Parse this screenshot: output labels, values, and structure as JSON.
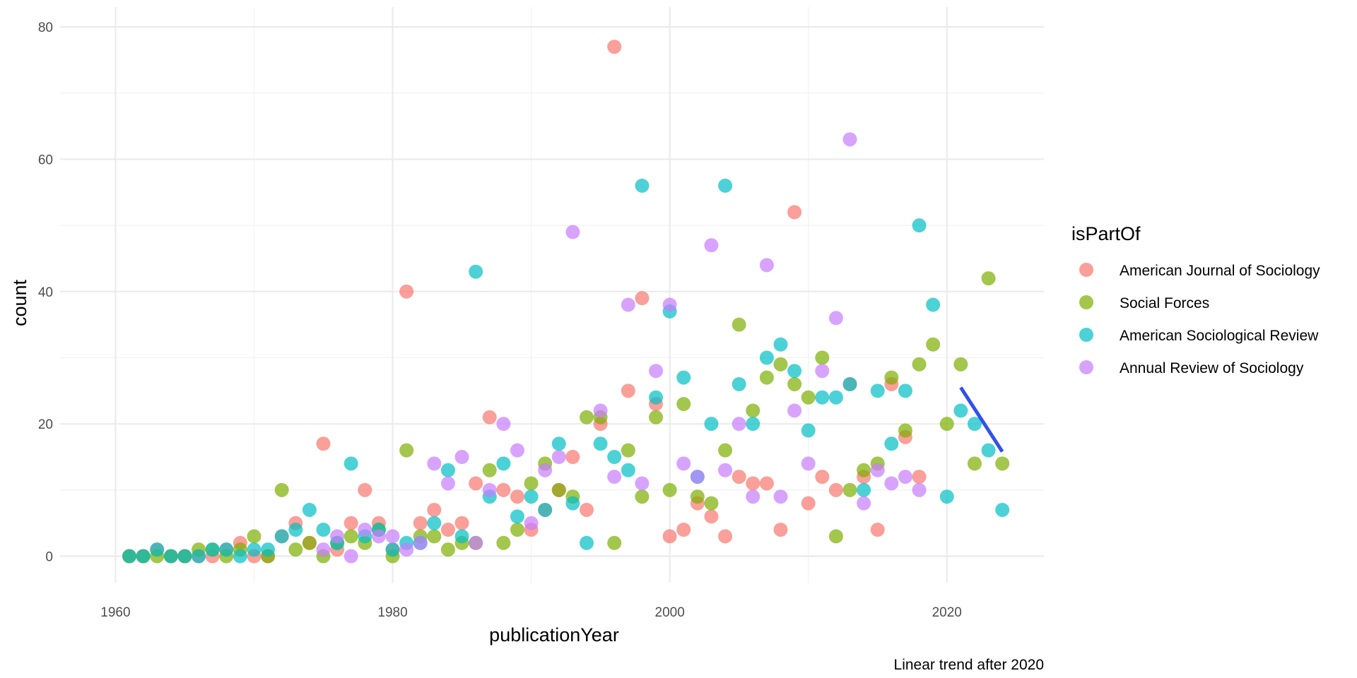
{
  "chart_data": {
    "type": "scatter",
    "xlabel": "publicationYear",
    "ylabel": "count",
    "caption": "Linear trend after 2020",
    "xlim": [
      1956,
      2027
    ],
    "ylim": [
      -4,
      83
    ],
    "x_ticks": [
      1960,
      1980,
      2000,
      2020
    ],
    "y_ticks": [
      0,
      20,
      40,
      60,
      80
    ],
    "x_tick_labels": [
      "1960",
      "1980",
      "2000",
      "2020"
    ],
    "y_tick_labels": [
      "0",
      "20",
      "40",
      "60",
      "80"
    ],
    "grid": true,
    "legend": {
      "title": "isPartOf",
      "position": "right"
    },
    "series": [
      {
        "name": "American Journal of Sociology",
        "color": "#F8766D",
        "points": [
          [
            1961,
            0
          ],
          [
            1962,
            0
          ],
          [
            1963,
            1
          ],
          [
            1964,
            0
          ],
          [
            1965,
            0
          ],
          [
            1966,
            0
          ],
          [
            1967,
            0
          ],
          [
            1968,
            1
          ],
          [
            1969,
            2
          ],
          [
            1970,
            0
          ],
          [
            1971,
            0
          ],
          [
            1972,
            3
          ],
          [
            1973,
            5
          ],
          [
            1974,
            2
          ],
          [
            1975,
            17
          ],
          [
            1976,
            1
          ],
          [
            1977,
            5
          ],
          [
            1978,
            10
          ],
          [
            1979,
            5
          ],
          [
            1980,
            1
          ],
          [
            1981,
            40
          ],
          [
            1982,
            5
          ],
          [
            1983,
            7
          ],
          [
            1984,
            4
          ],
          [
            1985,
            5
          ],
          [
            1986,
            11
          ],
          [
            1987,
            21
          ],
          [
            1988,
            10
          ],
          [
            1989,
            9
          ],
          [
            1990,
            4
          ],
          [
            1991,
            7
          ],
          [
            1992,
            10
          ],
          [
            1993,
            15
          ],
          [
            1994,
            7
          ],
          [
            1995,
            20
          ],
          [
            1996,
            77
          ],
          [
            1997,
            25
          ],
          [
            1998,
            39
          ],
          [
            1999,
            23
          ],
          [
            2000,
            3
          ],
          [
            2001,
            4
          ],
          [
            2002,
            8
          ],
          [
            2003,
            6
          ],
          [
            2004,
            3
          ],
          [
            2005,
            12
          ],
          [
            2006,
            11
          ],
          [
            2007,
            11
          ],
          [
            2008,
            4
          ],
          [
            2009,
            52
          ],
          [
            2010,
            8
          ],
          [
            2011,
            12
          ],
          [
            2012,
            10
          ],
          [
            2013,
            26
          ],
          [
            2014,
            12
          ],
          [
            2015,
            4
          ],
          [
            2016,
            26
          ],
          [
            2017,
            18
          ],
          [
            2018,
            12
          ]
        ]
      },
      {
        "name": "Social Forces",
        "color": "#7CAE00",
        "points": [
          [
            1961,
            0
          ],
          [
            1962,
            0
          ],
          [
            1963,
            0
          ],
          [
            1964,
            0
          ],
          [
            1965,
            0
          ],
          [
            1966,
            1
          ],
          [
            1967,
            1
          ],
          [
            1968,
            0
          ],
          [
            1969,
            1
          ],
          [
            1970,
            3
          ],
          [
            1971,
            0
          ],
          [
            1972,
            10
          ],
          [
            1973,
            1
          ],
          [
            1974,
            2
          ],
          [
            1975,
            0
          ],
          [
            1976,
            2
          ],
          [
            1977,
            3
          ],
          [
            1978,
            2
          ],
          [
            1979,
            4
          ],
          [
            1980,
            0
          ],
          [
            1981,
            16
          ],
          [
            1982,
            3
          ],
          [
            1983,
            3
          ],
          [
            1984,
            1
          ],
          [
            1985,
            2
          ],
          [
            1986,
            2
          ],
          [
            1987,
            13
          ],
          [
            1988,
            2
          ],
          [
            1989,
            4
          ],
          [
            1990,
            11
          ],
          [
            1991,
            14
          ],
          [
            1992,
            10
          ],
          [
            1993,
            9
          ],
          [
            1994,
            21
          ],
          [
            1995,
            21
          ],
          [
            1996,
            2
          ],
          [
            1997,
            16
          ],
          [
            1998,
            9
          ],
          [
            1999,
            21
          ],
          [
            2000,
            10
          ],
          [
            2001,
            23
          ],
          [
            2002,
            9
          ],
          [
            2003,
            8
          ],
          [
            2004,
            16
          ],
          [
            2005,
            35
          ],
          [
            2006,
            22
          ],
          [
            2007,
            27
          ],
          [
            2008,
            29
          ],
          [
            2009,
            26
          ],
          [
            2010,
            24
          ],
          [
            2011,
            30
          ],
          [
            2012,
            3
          ],
          [
            2013,
            10
          ],
          [
            2014,
            13
          ],
          [
            2015,
            14
          ],
          [
            2016,
            27
          ],
          [
            2017,
            19
          ],
          [
            2018,
            29
          ],
          [
            2019,
            32
          ],
          [
            2020,
            20
          ],
          [
            2021,
            29
          ],
          [
            2022,
            14
          ],
          [
            2023,
            42
          ],
          [
            2024,
            14
          ]
        ]
      },
      {
        "name": "American Sociological Review",
        "color": "#00BFC4",
        "points": [
          [
            1961,
            0
          ],
          [
            1962,
            0
          ],
          [
            1963,
            1
          ],
          [
            1964,
            0
          ],
          [
            1965,
            0
          ],
          [
            1966,
            0
          ],
          [
            1967,
            1
          ],
          [
            1968,
            1
          ],
          [
            1969,
            0
          ],
          [
            1970,
            1
          ],
          [
            1971,
            1
          ],
          [
            1972,
            3
          ],
          [
            1973,
            4
          ],
          [
            1974,
            7
          ],
          [
            1975,
            4
          ],
          [
            1976,
            2
          ],
          [
            1977,
            14
          ],
          [
            1978,
            3
          ],
          [
            1979,
            4
          ],
          [
            1980,
            1
          ],
          [
            1981,
            2
          ],
          [
            1982,
            2
          ],
          [
            1983,
            5
          ],
          [
            1984,
            13
          ],
          [
            1985,
            3
          ],
          [
            1986,
            43
          ],
          [
            1987,
            9
          ],
          [
            1988,
            14
          ],
          [
            1989,
            6
          ],
          [
            1990,
            9
          ],
          [
            1991,
            7
          ],
          [
            1992,
            17
          ],
          [
            1993,
            8
          ],
          [
            1994,
            2
          ],
          [
            1995,
            17
          ],
          [
            1996,
            15
          ],
          [
            1997,
            13
          ],
          [
            1998,
            56
          ],
          [
            1999,
            24
          ],
          [
            2000,
            37
          ],
          [
            2001,
            27
          ],
          [
            2002,
            12
          ],
          [
            2003,
            20
          ],
          [
            2004,
            56
          ],
          [
            2005,
            26
          ],
          [
            2006,
            20
          ],
          [
            2007,
            30
          ],
          [
            2008,
            32
          ],
          [
            2009,
            28
          ],
          [
            2010,
            19
          ],
          [
            2011,
            24
          ],
          [
            2012,
            24
          ],
          [
            2013,
            26
          ],
          [
            2014,
            10
          ],
          [
            2015,
            25
          ],
          [
            2016,
            17
          ],
          [
            2017,
            25
          ],
          [
            2018,
            50
          ],
          [
            2019,
            38
          ],
          [
            2020,
            9
          ],
          [
            2021,
            22
          ],
          [
            2022,
            20
          ],
          [
            2023,
            16
          ],
          [
            2024,
            7
          ]
        ]
      },
      {
        "name": "Annual Review of Sociology",
        "color": "#C77CFF",
        "points": [
          [
            1975,
            1
          ],
          [
            1976,
            3
          ],
          [
            1977,
            0
          ],
          [
            1978,
            4
          ],
          [
            1979,
            3
          ],
          [
            1980,
            3
          ],
          [
            1981,
            1
          ],
          [
            1982,
            2
          ],
          [
            1983,
            14
          ],
          [
            1984,
            11
          ],
          [
            1985,
            15
          ],
          [
            1986,
            2
          ],
          [
            1987,
            10
          ],
          [
            1988,
            20
          ],
          [
            1989,
            16
          ],
          [
            1990,
            5
          ],
          [
            1991,
            13
          ],
          [
            1992,
            15
          ],
          [
            1993,
            49
          ],
          [
            1995,
            22
          ],
          [
            1996,
            12
          ],
          [
            1997,
            38
          ],
          [
            1998,
            11
          ],
          [
            1999,
            28
          ],
          [
            2000,
            38
          ],
          [
            2001,
            14
          ],
          [
            2002,
            12
          ],
          [
            2003,
            47
          ],
          [
            2004,
            13
          ],
          [
            2005,
            20
          ],
          [
            2006,
            9
          ],
          [
            2007,
            44
          ],
          [
            2008,
            9
          ],
          [
            2009,
            22
          ],
          [
            2010,
            14
          ],
          [
            2011,
            28
          ],
          [
            2012,
            36
          ],
          [
            2013,
            63
          ],
          [
            2014,
            8
          ],
          [
            2015,
            13
          ],
          [
            2016,
            11
          ],
          [
            2017,
            12
          ],
          [
            2018,
            10
          ]
        ]
      }
    ],
    "trend_line": {
      "color": "#3050F0",
      "points": [
        [
          2021,
          25.5
        ],
        [
          2024,
          15.8
        ]
      ]
    }
  }
}
